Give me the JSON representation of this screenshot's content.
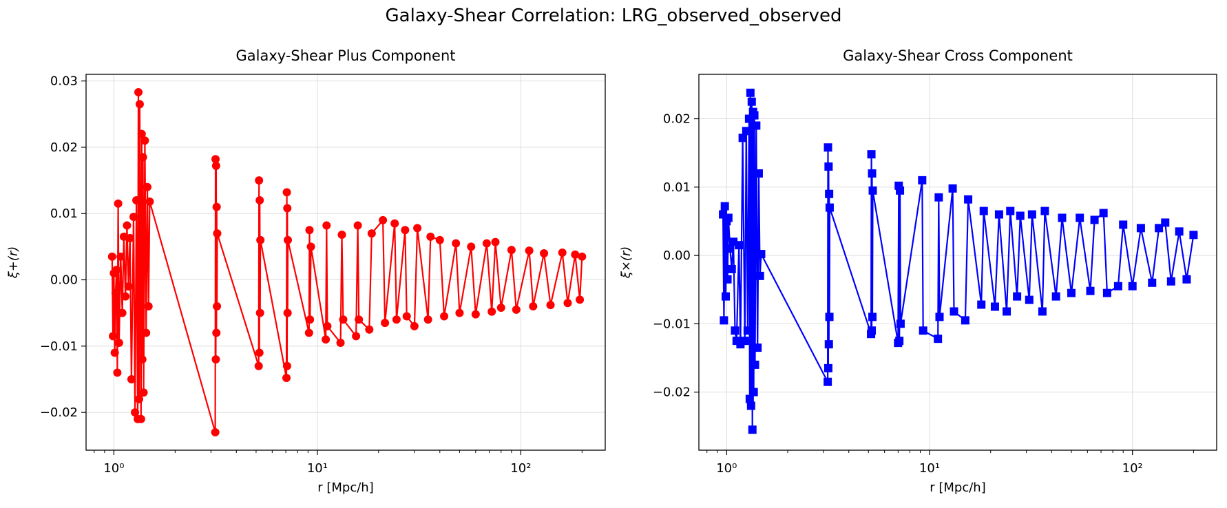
{
  "figure": {
    "suptitle": "Galaxy-Shear Correlation: LRG_observed_observed"
  },
  "colors": {
    "plus": "#ff0000",
    "cross": "#0000ff",
    "grid": "#dddddd"
  },
  "chart_data": [
    {
      "type": "line",
      "marker": "circle",
      "title": "Galaxy-Shear Plus Component",
      "xlabel": "r [Mpc/h]",
      "ylabel": "ξ+(r)",
      "xscale": "log",
      "xlim": [
        0.73,
        260
      ],
      "ylim": [
        -0.0257,
        0.031
      ],
      "grid": true,
      "xtick_values": [
        1,
        10,
        100
      ],
      "xtick_labels": [
        "10⁰",
        "10¹",
        "10²"
      ],
      "ytick_values": [
        -0.02,
        -0.01,
        0.0,
        0.01,
        0.02,
        0.03
      ],
      "ytick_labels": [
        "−0.02",
        "−0.01",
        "0.00",
        "0.01",
        "0.02",
        "0.03"
      ],
      "series": [
        {
          "color": "#ff0000",
          "points": [
            [
              0.98,
              0.0035
            ],
            [
              0.99,
              -0.0085
            ],
            [
              1.0,
              0.001
            ],
            [
              1.01,
              -0.011
            ],
            [
              1.02,
              -0.002
            ],
            [
              1.03,
              0.0015
            ],
            [
              1.04,
              -0.014
            ],
            [
              1.05,
              0.0115
            ],
            [
              1.06,
              -0.0095
            ],
            [
              1.08,
              0.0035
            ],
            [
              1.1,
              -0.005
            ],
            [
              1.12,
              0.0065
            ],
            [
              1.14,
              -0.0025
            ],
            [
              1.16,
              0.0082
            ],
            [
              1.18,
              -0.001
            ],
            [
              1.2,
              0.0063
            ],
            [
              1.22,
              -0.015
            ],
            [
              1.25,
              0.0095
            ],
            [
              1.27,
              -0.02
            ],
            [
              1.29,
              0.012
            ],
            [
              1.31,
              -0.021
            ],
            [
              1.32,
              0.0283
            ],
            [
              1.33,
              -0.018
            ],
            [
              1.34,
              0.0265
            ],
            [
              1.36,
              -0.021
            ],
            [
              1.37,
              0.022
            ],
            [
              1.38,
              -0.012
            ],
            [
              1.39,
              0.0185
            ],
            [
              1.4,
              -0.017
            ],
            [
              1.42,
              0.021
            ],
            [
              1.44,
              -0.008
            ],
            [
              1.46,
              0.014
            ],
            [
              1.48,
              -0.004
            ],
            [
              1.5,
              0.0118
            ],
            [
              3.15,
              -0.023
            ],
            [
              3.16,
              0.0182
            ],
            [
              3.17,
              -0.012
            ],
            [
              3.18,
              0.0172
            ],
            [
              3.19,
              -0.008
            ],
            [
              3.2,
              0.011
            ],
            [
              3.21,
              -0.004
            ],
            [
              3.22,
              0.007
            ],
            [
              5.15,
              -0.013
            ],
            [
              5.17,
              0.015
            ],
            [
              5.19,
              -0.011
            ],
            [
              5.21,
              0.012
            ],
            [
              5.23,
              -0.005
            ],
            [
              5.25,
              0.006
            ],
            [
              7.05,
              -0.0148
            ],
            [
              7.08,
              0.0132
            ],
            [
              7.1,
              -0.013
            ],
            [
              7.12,
              0.0108
            ],
            [
              7.14,
              -0.005
            ],
            [
              7.16,
              0.006
            ],
            [
              9.1,
              -0.008
            ],
            [
              9.15,
              0.0075
            ],
            [
              9.2,
              -0.006
            ],
            [
              9.3,
              0.005
            ],
            [
              11.0,
              -0.009
            ],
            [
              11.1,
              0.0082
            ],
            [
              11.2,
              -0.007
            ],
            [
              13.0,
              -0.0095
            ],
            [
              13.2,
              0.0068
            ],
            [
              13.4,
              -0.006
            ],
            [
              15.5,
              -0.0085
            ],
            [
              15.8,
              0.0082
            ],
            [
              16.0,
              -0.006
            ],
            [
              18.0,
              -0.0075
            ],
            [
              18.5,
              0.007
            ],
            [
              21.0,
              0.009
            ],
            [
              21.5,
              -0.0065
            ],
            [
              24.0,
              0.0085
            ],
            [
              24.5,
              -0.006
            ],
            [
              27.0,
              0.0075
            ],
            [
              27.5,
              -0.0055
            ],
            [
              30.0,
              -0.007
            ],
            [
              31.0,
              0.0078
            ],
            [
              35.0,
              -0.006
            ],
            [
              36.0,
              0.0065
            ],
            [
              40.0,
              0.006
            ],
            [
              42.0,
              -0.0055
            ],
            [
              48.0,
              0.0055
            ],
            [
              50.0,
              -0.005
            ],
            [
              57.0,
              0.005
            ],
            [
              60.0,
              -0.0052
            ],
            [
              68.0,
              0.0055
            ],
            [
              72.0,
              -0.0048
            ],
            [
              75.0,
              0.0057
            ],
            [
              80.0,
              -0.0042
            ],
            [
              90.0,
              0.0045
            ],
            [
              95.0,
              -0.0045
            ],
            [
              110.0,
              0.0044
            ],
            [
              115.0,
              -0.004
            ],
            [
              130.0,
              0.004
            ],
            [
              140.0,
              -0.0038
            ],
            [
              160.0,
              0.0041
            ],
            [
              170.0,
              -0.0035
            ],
            [
              185.0,
              0.0038
            ],
            [
              195.0,
              -0.003
            ],
            [
              200.0,
              0.0035
            ]
          ]
        }
      ]
    },
    {
      "type": "line",
      "marker": "square",
      "title": "Galaxy-Shear Cross Component",
      "xlabel": "r [Mpc/h]",
      "ylabel": "ξ×(r)",
      "xscale": "log",
      "xlim": [
        0.73,
        260
      ],
      "ylim": [
        -0.0285,
        0.0265
      ],
      "grid": true,
      "xtick_values": [
        1,
        10,
        100
      ],
      "xtick_labels": [
        "10⁰",
        "10¹",
        "10²"
      ],
      "ytick_values": [
        -0.02,
        -0.01,
        0.0,
        0.01,
        0.02
      ],
      "ytick_labels": [
        "−0.02",
        "−0.01",
        "0.00",
        "0.01",
        "0.02"
      ],
      "series": [
        {
          "color": "#0000ff",
          "points": [
            [
              0.96,
              0.006
            ],
            [
              0.97,
              -0.0095
            ],
            [
              0.98,
              0.0072
            ],
            [
              0.99,
              -0.006
            ],
            [
              1.0,
              0.005
            ],
            [
              1.01,
              -0.0035
            ],
            [
              1.02,
              0.0055
            ],
            [
              1.04,
              0.001
            ],
            [
              1.06,
              -0.002
            ],
            [
              1.08,
              0.002
            ],
            [
              1.1,
              -0.011
            ],
            [
              1.12,
              -0.0125
            ],
            [
              1.15,
              0.0015
            ],
            [
              1.17,
              -0.013
            ],
            [
              1.2,
              0.0172
            ],
            [
              1.23,
              -0.0125
            ],
            [
              1.25,
              0.0182
            ],
            [
              1.27,
              -0.011
            ],
            [
              1.29,
              0.02
            ],
            [
              1.3,
              -0.021
            ],
            [
              1.31,
              0.0238
            ],
            [
              1.32,
              -0.022
            ],
            [
              1.33,
              0.0225
            ],
            [
              1.34,
              -0.0255
            ],
            [
              1.35,
              0.021
            ],
            [
              1.36,
              -0.02
            ],
            [
              1.37,
              0.0205
            ],
            [
              1.38,
              -0.016
            ],
            [
              1.4,
              0.019
            ],
            [
              1.42,
              -0.0135
            ],
            [
              1.44,
              0.012
            ],
            [
              1.46,
              -0.003
            ],
            [
              1.48,
              0.0002
            ],
            [
              3.15,
              -0.0185
            ],
            [
              3.16,
              0.0158
            ],
            [
              3.17,
              -0.0165
            ],
            [
              3.18,
              0.013
            ],
            [
              3.19,
              -0.013
            ],
            [
              3.2,
              0.009
            ],
            [
              3.21,
              -0.009
            ],
            [
              3.22,
              0.007
            ],
            [
              5.15,
              -0.0115
            ],
            [
              5.17,
              0.0148
            ],
            [
              5.19,
              -0.011
            ],
            [
              5.21,
              0.012
            ],
            [
              5.23,
              -0.009
            ],
            [
              5.25,
              0.0095
            ],
            [
              7.0,
              -0.0128
            ],
            [
              7.05,
              0.0102
            ],
            [
              7.1,
              -0.0125
            ],
            [
              7.15,
              0.0095
            ],
            [
              7.2,
              -0.01
            ],
            [
              9.2,
              0.011
            ],
            [
              9.3,
              -0.011
            ],
            [
              11.0,
              -0.0122
            ],
            [
              11.1,
              0.0085
            ],
            [
              11.2,
              -0.009
            ],
            [
              13.0,
              0.0098
            ],
            [
              13.2,
              -0.0082
            ],
            [
              15.0,
              -0.0095
            ],
            [
              15.5,
              0.0082
            ],
            [
              18.0,
              -0.0072
            ],
            [
              18.5,
              0.0065
            ],
            [
              21.0,
              -0.0075
            ],
            [
              22.0,
              0.006
            ],
            [
              24.0,
              -0.0082
            ],
            [
              25.0,
              0.0065
            ],
            [
              27.0,
              -0.006
            ],
            [
              28.0,
              0.0058
            ],
            [
              31.0,
              -0.0065
            ],
            [
              32.0,
              0.006
            ],
            [
              36.0,
              -0.0082
            ],
            [
              37.0,
              0.0065
            ],
            [
              42.0,
              -0.006
            ],
            [
              45.0,
              0.0055
            ],
            [
              50.0,
              -0.0055
            ],
            [
              55.0,
              0.0055
            ],
            [
              62.0,
              -0.0052
            ],
            [
              65.0,
              0.0052
            ],
            [
              72.0,
              0.0062
            ],
            [
              75.0,
              -0.0055
            ],
            [
              85.0,
              -0.0045
            ],
            [
              90.0,
              0.0045
            ],
            [
              100.0,
              -0.0045
            ],
            [
              110.0,
              0.004
            ],
            [
              125.0,
              -0.004
            ],
            [
              135.0,
              0.004
            ],
            [
              145.0,
              0.0048
            ],
            [
              155.0,
              -0.0038
            ],
            [
              170.0,
              0.0035
            ],
            [
              185.0,
              -0.0035
            ],
            [
              200.0,
              0.003
            ]
          ]
        }
      ]
    }
  ]
}
